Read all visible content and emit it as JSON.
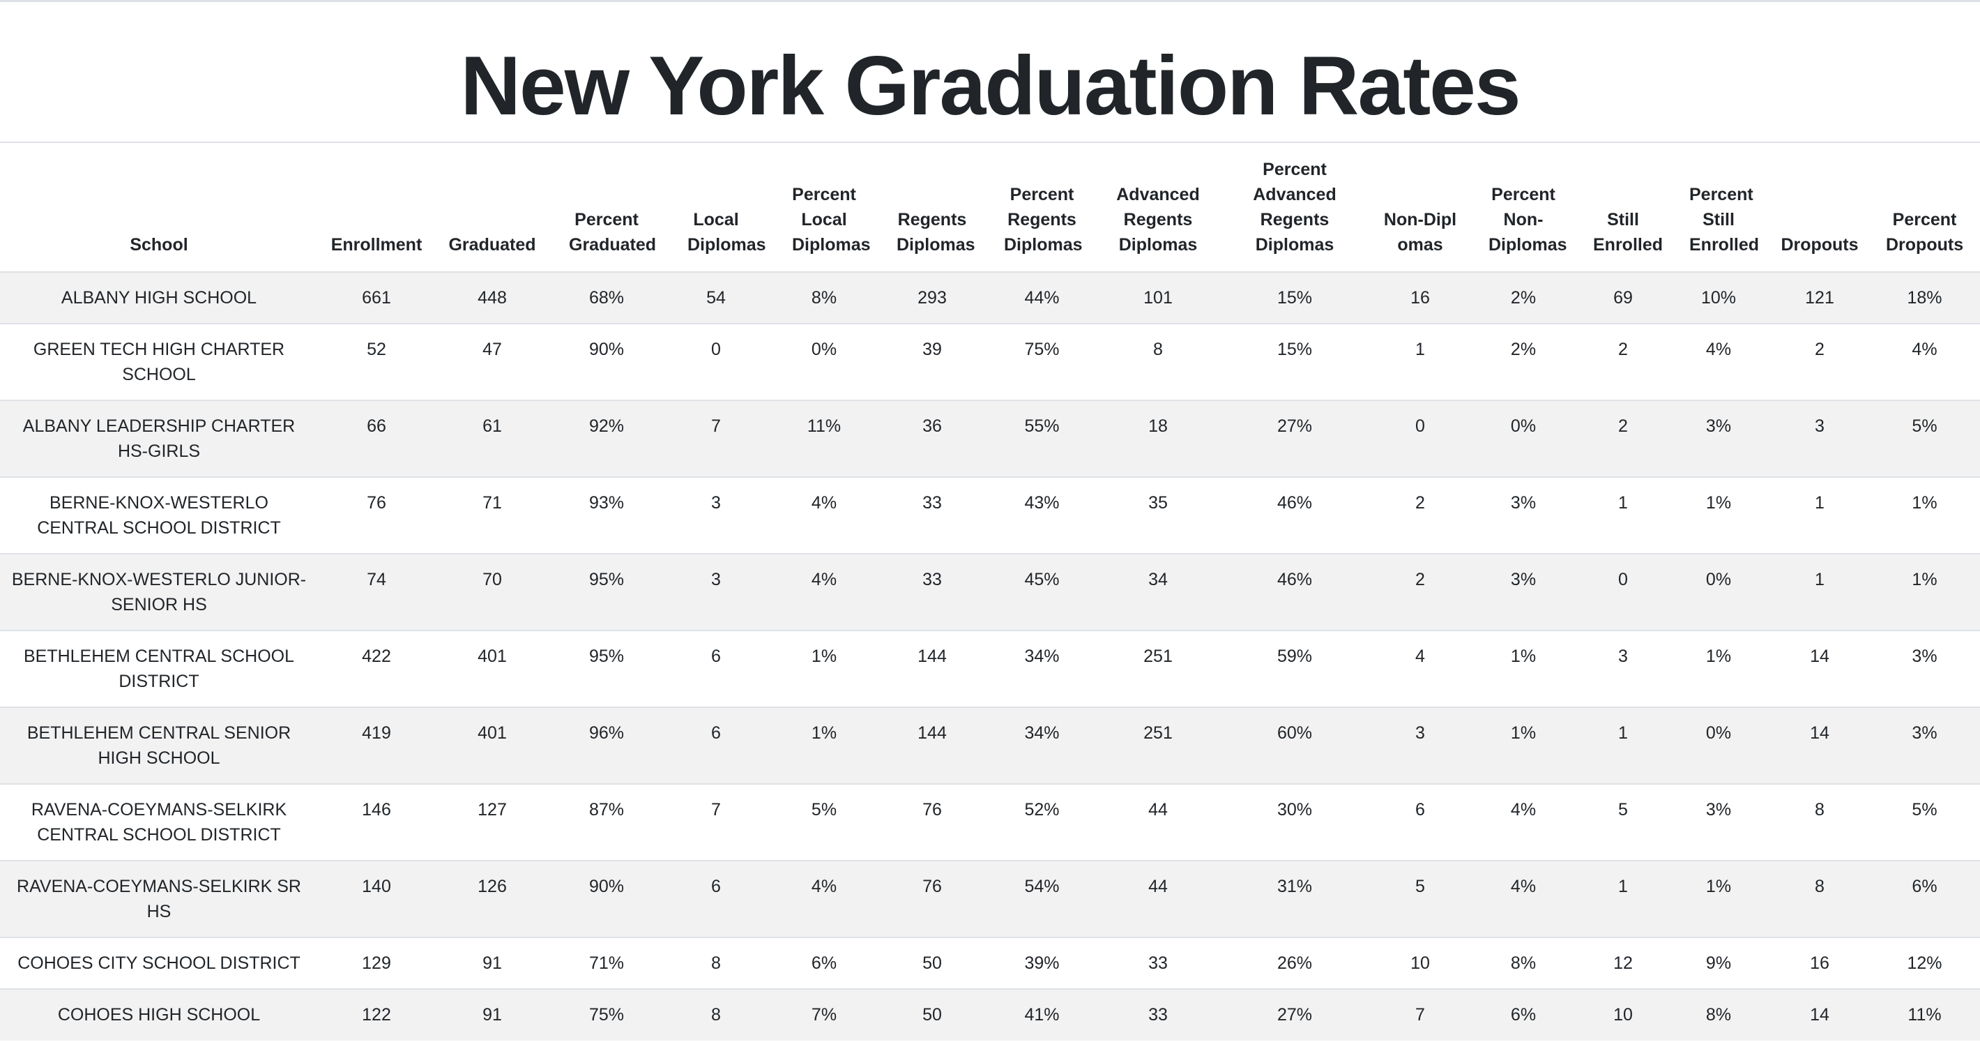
{
  "page": {
    "title": "New York Graduation Rates"
  },
  "table": {
    "headers": [
      "School",
      "Enrollment",
      "Graduated",
      "Percent Graduated",
      "Local Diplomas",
      "Percent Local Diplomas",
      "Regents Diplomas",
      "Percent Regents Diplomas",
      "Advanced Regents Diplomas",
      "Percent Advanced Regents Diplomas",
      "Non-Diplomas",
      "Percent Non-Diplomas",
      "Still Enrolled",
      "Percent Still Enrolled",
      "Dropouts",
      "Percent Dropouts"
    ],
    "rows": [
      [
        "ALBANY HIGH SCHOOL",
        "661",
        "448",
        "68%",
        "54",
        "8%",
        "293",
        "44%",
        "101",
        "15%",
        "16",
        "2%",
        "69",
        "10%",
        "121",
        "18%"
      ],
      [
        "GREEN TECH HIGH CHARTER SCHOOL",
        "52",
        "47",
        "90%",
        "0",
        "0%",
        "39",
        "75%",
        "8",
        "15%",
        "1",
        "2%",
        "2",
        "4%",
        "2",
        "4%"
      ],
      [
        "ALBANY LEADERSHIP CHARTER HS-GIRLS",
        "66",
        "61",
        "92%",
        "7",
        "11%",
        "36",
        "55%",
        "18",
        "27%",
        "0",
        "0%",
        "2",
        "3%",
        "3",
        "5%"
      ],
      [
        "BERNE-KNOX-WESTERLO CENTRAL SCHOOL DISTRICT",
        "76",
        "71",
        "93%",
        "3",
        "4%",
        "33",
        "43%",
        "35",
        "46%",
        "2",
        "3%",
        "1",
        "1%",
        "1",
        "1%"
      ],
      [
        "BERNE-KNOX-WESTERLO JUNIOR-SENIOR HS",
        "74",
        "70",
        "95%",
        "3",
        "4%",
        "33",
        "45%",
        "34",
        "46%",
        "2",
        "3%",
        "0",
        "0%",
        "1",
        "1%"
      ],
      [
        "BETHLEHEM CENTRAL SCHOOL DISTRICT",
        "422",
        "401",
        "95%",
        "6",
        "1%",
        "144",
        "34%",
        "251",
        "59%",
        "4",
        "1%",
        "3",
        "1%",
        "14",
        "3%"
      ],
      [
        "BETHLEHEM CENTRAL SENIOR HIGH SCHOOL",
        "419",
        "401",
        "96%",
        "6",
        "1%",
        "144",
        "34%",
        "251",
        "60%",
        "3",
        "1%",
        "1",
        "0%",
        "14",
        "3%"
      ],
      [
        "RAVENA-COEYMANS-SELKIRK CENTRAL SCHOOL DISTRICT",
        "146",
        "127",
        "87%",
        "7",
        "5%",
        "76",
        "52%",
        "44",
        "30%",
        "6",
        "4%",
        "5",
        "3%",
        "8",
        "5%"
      ],
      [
        "RAVENA-COEYMANS-SELKIRK SR HS",
        "140",
        "126",
        "90%",
        "6",
        "4%",
        "76",
        "54%",
        "44",
        "31%",
        "5",
        "4%",
        "1",
        "1%",
        "8",
        "6%"
      ],
      [
        "COHOES CITY SCHOOL DISTRICT",
        "129",
        "91",
        "71%",
        "8",
        "6%",
        "50",
        "39%",
        "33",
        "26%",
        "10",
        "8%",
        "12",
        "9%",
        "16",
        "12%"
      ],
      [
        "COHOES HIGH SCHOOL",
        "122",
        "91",
        "75%",
        "8",
        "7%",
        "50",
        "41%",
        "33",
        "27%",
        "7",
        "6%",
        "10",
        "8%",
        "14",
        "11%"
      ]
    ]
  }
}
